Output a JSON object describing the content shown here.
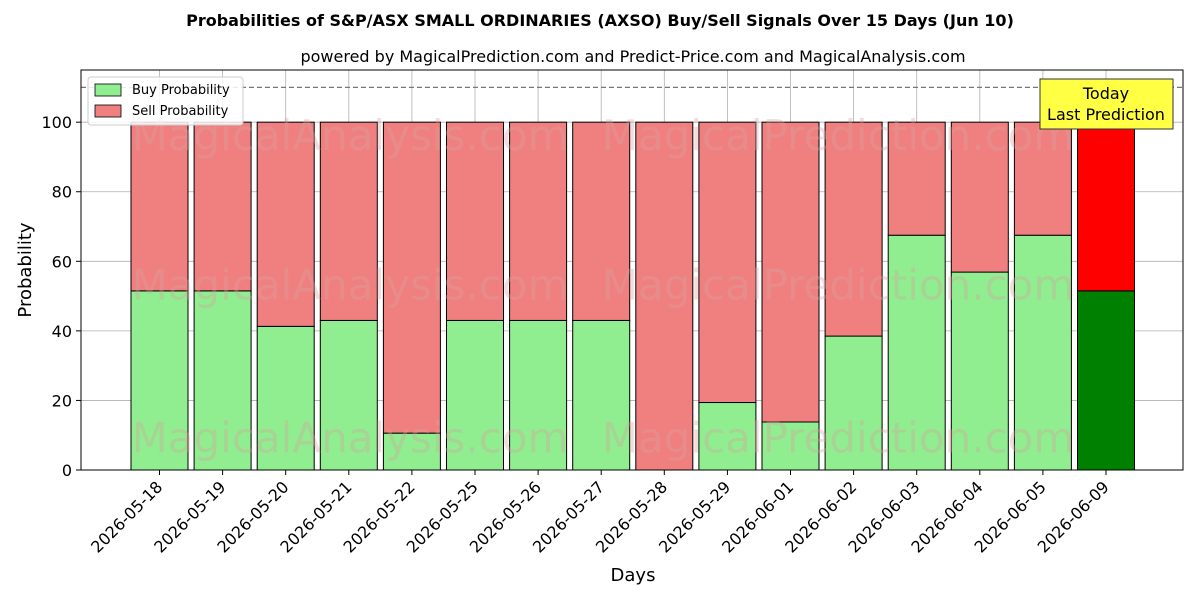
{
  "chart_data": {
    "type": "bar",
    "stacked": true,
    "title": "Probabilities of S&P/ASX SMALL ORDINARIES (AXSO) Buy/Sell Signals Over 15 Days (Jun 10)",
    "subtitle": "powered by MagicalPrediction.com and Predict-Price.com and MagicalAnalysis.com",
    "xlabel": "Days",
    "ylabel": "Probability",
    "ylim": [
      0,
      115
    ],
    "yticks": [
      0,
      20,
      40,
      60,
      80,
      100
    ],
    "grid": true,
    "legend_placement": "top-left",
    "reference_line": 110,
    "categories": [
      "2026-05-18",
      "2026-05-19",
      "2026-05-20",
      "2026-05-21",
      "2026-05-22",
      "2026-05-25",
      "2026-05-26",
      "2026-05-27",
      "2026-05-28",
      "2026-05-29",
      "2026-06-01",
      "2026-06-02",
      "2026-06-03",
      "2026-06-04",
      "2026-06-05",
      "2026-06-09"
    ],
    "series": [
      {
        "name": "Buy Probability",
        "color": "#90ee90",
        "values": [
          51.5,
          51.5,
          41.3,
          43.0,
          10.6,
          43.0,
          43.0,
          43.0,
          0.0,
          19.4,
          13.8,
          38.5,
          67.5,
          56.9,
          67.5,
          51.5
        ]
      },
      {
        "name": "Sell Probability",
        "color": "#f08080",
        "values": [
          48.5,
          48.5,
          58.7,
          57.0,
          89.4,
          57.0,
          57.0,
          57.0,
          100.0,
          80.6,
          86.2,
          61.5,
          32.5,
          43.1,
          32.5,
          48.5
        ]
      }
    ],
    "highlight": {
      "index": 15,
      "buy_color": "#008000",
      "sell_color": "#ff0000"
    },
    "annotation": {
      "line1": "Today",
      "line2": "Last Prediction",
      "bg": "#ffff44"
    },
    "watermarks": [
      "MagicalAnalysis.com",
      "MagicalPrediction.com"
    ]
  }
}
